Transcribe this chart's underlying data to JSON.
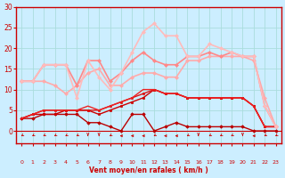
{
  "xlabel": "Vent moyen/en rafales ( km/h )",
  "bg_color": "#cceeff",
  "grid_color": "#aadddd",
  "axis_color": "#cc0000",
  "text_color": "#cc0000",
  "xlim": [
    -0.5,
    23.5
  ],
  "ylim": [
    -3,
    30
  ],
  "yticks": [
    0,
    5,
    10,
    15,
    20,
    25,
    30
  ],
  "yticklabels": [
    "0",
    "5",
    "10",
    "15",
    "20",
    "25",
    "30"
  ],
  "xticks": [
    0,
    1,
    2,
    3,
    4,
    5,
    6,
    7,
    8,
    9,
    10,
    11,
    12,
    13,
    14,
    15,
    16,
    17,
    18,
    19,
    20,
    21,
    22,
    23
  ],
  "lines": [
    {
      "x": [
        0,
        1,
        2,
        3,
        4,
        5,
        6,
        7,
        8,
        9,
        10,
        11,
        12,
        13,
        14,
        15,
        16,
        17,
        18,
        19,
        20,
        21,
        22,
        23
      ],
      "y": [
        3,
        3,
        4,
        4,
        4,
        4,
        2,
        2,
        1,
        0,
        4,
        4,
        0,
        1,
        2,
        1,
        1,
        1,
        1,
        1,
        1,
        0,
        0,
        0
      ],
      "color": "#bb0000",
      "lw": 1.0,
      "marker": "D",
      "ms": 1.8
    },
    {
      "x": [
        0,
        1,
        2,
        3,
        4,
        5,
        6,
        7,
        8,
        9,
        10,
        11,
        12,
        13,
        14,
        15,
        16,
        17,
        18,
        19,
        20,
        21,
        22,
        23
      ],
      "y": [
        3,
        4,
        4,
        4,
        5,
        5,
        5,
        4,
        5,
        6,
        7,
        8,
        10,
        9,
        9,
        8,
        8,
        8,
        8,
        8,
        8,
        6,
        1,
        1
      ],
      "color": "#cc0000",
      "lw": 1.0,
      "marker": "s",
      "ms": 1.8
    },
    {
      "x": [
        0,
        1,
        2,
        3,
        4,
        5,
        6,
        7,
        8,
        9,
        10,
        11,
        12,
        13,
        14,
        15,
        16,
        17,
        18,
        19,
        20,
        21,
        22,
        23
      ],
      "y": [
        3,
        4,
        5,
        5,
        5,
        5,
        5,
        5,
        6,
        7,
        8,
        9,
        10,
        9,
        9,
        8,
        8,
        8,
        8,
        8,
        8,
        6,
        1,
        1
      ],
      "color": "#dd1111",
      "lw": 1.0,
      "marker": "s",
      "ms": 1.5
    },
    {
      "x": [
        0,
        1,
        2,
        3,
        4,
        5,
        6,
        7,
        8,
        9,
        10,
        11,
        12,
        13,
        14,
        15,
        16,
        17,
        18,
        19,
        20,
        21,
        22,
        23
      ],
      "y": [
        3,
        4,
        5,
        5,
        5,
        5,
        6,
        5,
        6,
        7,
        8,
        10,
        10,
        9,
        9,
        8,
        8,
        8,
        8,
        8,
        8,
        6,
        1,
        1
      ],
      "color": "#ee2222",
      "lw": 1.0,
      "marker": null,
      "ms": 0
    },
    {
      "x": [
        0,
        1,
        2,
        3,
        4,
        5,
        6,
        7,
        8,
        9,
        10,
        11,
        12,
        13,
        14,
        15,
        16,
        17,
        18,
        19,
        20,
        21,
        22,
        23
      ],
      "y": [
        12,
        12,
        12,
        11,
        9,
        11,
        14,
        15,
        11,
        11,
        13,
        14,
        14,
        13,
        13,
        17,
        17,
        18,
        18,
        18,
        18,
        17,
        8,
        1
      ],
      "color": "#ffaaaa",
      "lw": 1.2,
      "marker": "D",
      "ms": 2.0
    },
    {
      "x": [
        0,
        1,
        2,
        3,
        4,
        5,
        6,
        7,
        8,
        9,
        10,
        11,
        12,
        13,
        14,
        15,
        16,
        17,
        18,
        19,
        20,
        21,
        22,
        23
      ],
      "y": [
        12,
        12,
        16,
        16,
        16,
        11,
        17,
        17,
        12,
        14,
        17,
        19,
        17,
        16,
        16,
        18,
        18,
        19,
        18,
        19,
        18,
        18,
        6,
        1
      ],
      "color": "#ff8888",
      "lw": 1.2,
      "marker": "D",
      "ms": 2.0
    },
    {
      "x": [
        0,
        1,
        2,
        3,
        4,
        5,
        6,
        7,
        8,
        9,
        10,
        11,
        12,
        13,
        14,
        15,
        16,
        17,
        18,
        19,
        20,
        21,
        22,
        23
      ],
      "y": [
        12,
        12,
        16,
        16,
        16,
        8,
        17,
        13,
        10,
        14,
        19,
        24,
        26,
        23,
        23,
        18,
        18,
        21,
        20,
        19,
        18,
        18,
        6,
        1
      ],
      "color": "#ffbbbb",
      "lw": 1.2,
      "marker": "D",
      "ms": 2.0
    }
  ],
  "arrow_angles": [
    225,
    225,
    225,
    225,
    225,
    225,
    180,
    180,
    225,
    270,
    270,
    270,
    225,
    270,
    270,
    225,
    180,
    225,
    225,
    225,
    180,
    270,
    225,
    225
  ]
}
